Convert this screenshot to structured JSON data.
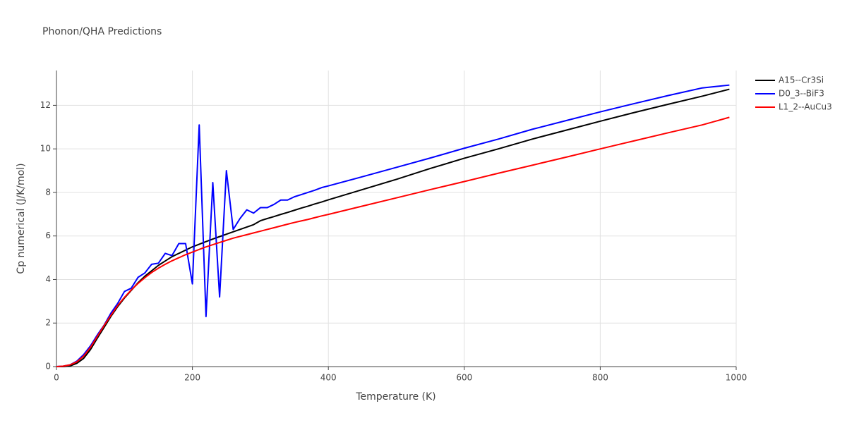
{
  "chart_data": {
    "type": "line",
    "title": "Phonon/QHA Predictions",
    "x_label": "Temperature (K)",
    "y_label": "Cp numerical (J/K/mol)",
    "x": [
      0,
      10,
      20,
      30,
      40,
      50,
      60,
      70,
      80,
      90,
      100,
      110,
      120,
      130,
      140,
      150,
      160,
      170,
      180,
      190,
      200,
      210,
      220,
      230,
      240,
      250,
      260,
      270,
      280,
      290,
      300,
      310,
      320,
      330,
      340,
      350,
      360,
      370,
      380,
      390,
      400,
      450,
      500,
      550,
      600,
      650,
      700,
      750,
      800,
      850,
      900,
      950,
      990
    ],
    "series": [
      {
        "name": "A15--Cr3Si",
        "color": "#000000",
        "values": [
          0,
          0,
          0.03,
          0.15,
          0.38,
          0.78,
          1.3,
          1.8,
          2.3,
          2.75,
          3.15,
          3.5,
          3.85,
          4.15,
          4.4,
          4.65,
          4.85,
          5.05,
          5.2,
          5.35,
          5.5,
          5.62,
          5.74,
          5.86,
          5.97,
          6.08,
          6.19,
          6.3,
          6.41,
          6.52,
          6.7,
          6.8,
          6.89,
          6.99,
          7.08,
          7.18,
          7.28,
          7.37,
          7.47,
          7.56,
          7.66,
          8.13,
          8.6,
          9.1,
          9.57,
          10.0,
          10.45,
          10.86,
          11.27,
          11.67,
          12.05,
          12.42,
          12.74
        ]
      },
      {
        "name": "D0_3--BiF3",
        "color": "#0000ff",
        "values": [
          0,
          0.02,
          0.08,
          0.25,
          0.55,
          0.95,
          1.45,
          1.9,
          2.45,
          2.9,
          3.45,
          3.6,
          4.1,
          4.3,
          4.7,
          4.75,
          5.2,
          5.1,
          5.65,
          5.65,
          3.8,
          11.1,
          2.3,
          8.45,
          3.2,
          9.0,
          6.3,
          6.8,
          7.2,
          7.05,
          7.3,
          7.3,
          7.45,
          7.65,
          7.65,
          7.8,
          7.9,
          8.0,
          8.1,
          8.22,
          8.3,
          8.72,
          9.15,
          9.58,
          10.03,
          10.45,
          10.9,
          11.3,
          11.7,
          12.08,
          12.45,
          12.8,
          12.93
        ]
      },
      {
        "name": "L1_2--AuCu3",
        "color": "#ff0000",
        "values": [
          0,
          0.02,
          0.08,
          0.22,
          0.48,
          0.88,
          1.38,
          1.88,
          2.35,
          2.8,
          3.18,
          3.52,
          3.82,
          4.08,
          4.32,
          4.52,
          4.7,
          4.86,
          5.0,
          5.14,
          5.26,
          5.38,
          5.5,
          5.6,
          5.7,
          5.8,
          5.9,
          5.98,
          6.06,
          6.14,
          6.22,
          6.3,
          6.38,
          6.46,
          6.54,
          6.62,
          6.69,
          6.76,
          6.84,
          6.92,
          6.99,
          7.37,
          7.75,
          8.13,
          8.5,
          8.88,
          9.25,
          9.62,
          10.0,
          10.37,
          10.74,
          11.1,
          11.45
        ]
      }
    ],
    "xlim": [
      0,
      1000
    ],
    "xticks": [
      0,
      200,
      400,
      600,
      800,
      1000
    ],
    "ylim": [
      0,
      13.6
    ],
    "yticks": [
      0,
      2,
      4,
      6,
      8,
      10,
      12
    ],
    "grid": true
  }
}
